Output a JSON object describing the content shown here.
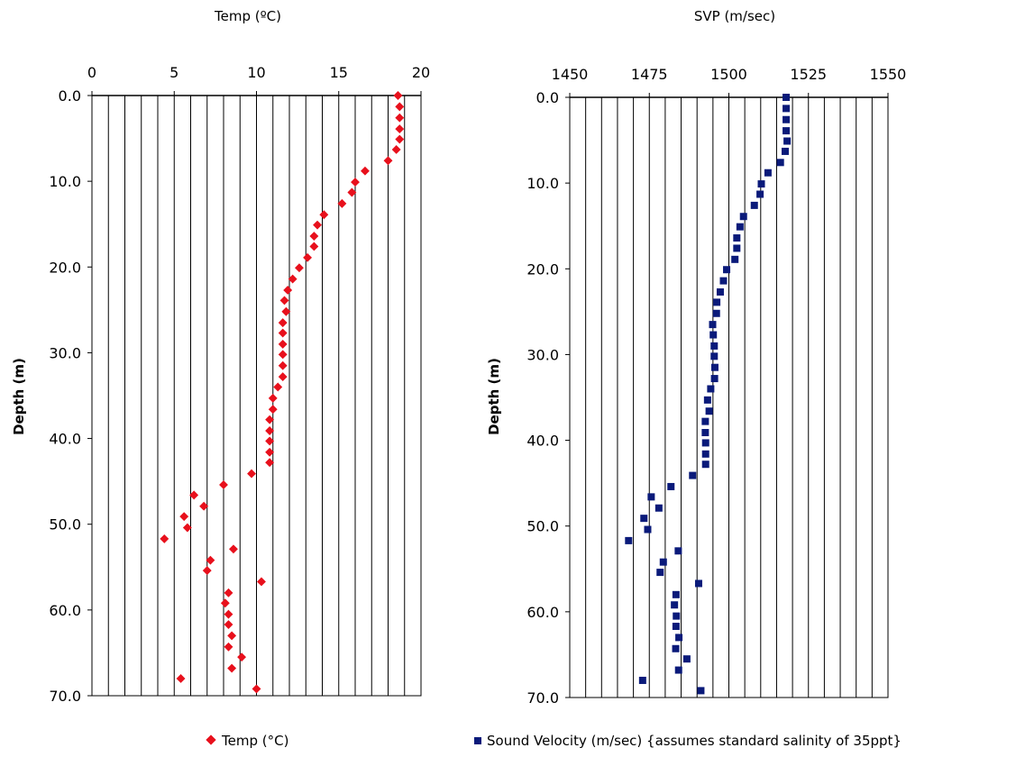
{
  "chart_data": [
    {
      "type": "scatter",
      "title": "Temp (ºC)",
      "ylabel": "Depth (m)",
      "xlim": [
        0,
        20
      ],
      "x_ticks": [
        "0",
        "5",
        "10",
        "15",
        "20"
      ],
      "ylim": [
        0,
        70
      ],
      "y_ticks": [
        "0.0",
        "10.0",
        "20.0",
        "30.0",
        "40.0",
        "50.0",
        "60.0",
        "70.0"
      ],
      "x_axis_position": "top",
      "y_inverted": true,
      "grid": "vertical",
      "legend": "bottom",
      "legend_label": "Temp (°C)",
      "marker": "diamond",
      "color": "#e8101c",
      "series": [
        {
          "name": "Temp (°C)",
          "points": [
            [
              18.6,
              0.0
            ],
            [
              18.7,
              1.3
            ],
            [
              18.7,
              2.6
            ],
            [
              18.7,
              3.9
            ],
            [
              18.7,
              5.1
            ],
            [
              18.5,
              6.3
            ],
            [
              18.0,
              7.6
            ],
            [
              16.6,
              8.8
            ],
            [
              16.0,
              10.1
            ],
            [
              15.8,
              11.3
            ],
            [
              15.2,
              12.6
            ],
            [
              14.1,
              13.9
            ],
            [
              13.7,
              15.1
            ],
            [
              13.5,
              16.4
            ],
            [
              13.5,
              17.6
            ],
            [
              13.1,
              18.9
            ],
            [
              12.6,
              20.1
            ],
            [
              12.2,
              21.4
            ],
            [
              11.9,
              22.7
            ],
            [
              11.7,
              23.9
            ],
            [
              11.8,
              25.2
            ],
            [
              11.6,
              26.5
            ],
            [
              11.6,
              27.7
            ],
            [
              11.6,
              29.0
            ],
            [
              11.6,
              30.2
            ],
            [
              11.6,
              31.5
            ],
            [
              11.6,
              32.8
            ],
            [
              11.3,
              34.0
            ],
            [
              11.0,
              35.3
            ],
            [
              11.0,
              36.6
            ],
            [
              10.8,
              37.8
            ],
            [
              10.8,
              39.1
            ],
            [
              10.8,
              40.3
            ],
            [
              10.8,
              41.6
            ],
            [
              10.8,
              42.8
            ],
            [
              9.7,
              44.1
            ],
            [
              8.0,
              45.4
            ],
            [
              6.2,
              46.6
            ],
            [
              6.8,
              47.9
            ],
            [
              5.6,
              49.1
            ],
            [
              5.8,
              50.4
            ],
            [
              4.4,
              51.7
            ],
            [
              8.6,
              52.9
            ],
            [
              7.2,
              54.2
            ],
            [
              7.0,
              55.4
            ],
            [
              10.3,
              56.7
            ],
            [
              8.3,
              58.0
            ],
            [
              8.1,
              59.2
            ],
            [
              8.3,
              60.5
            ],
            [
              8.3,
              61.7
            ],
            [
              8.5,
              63.0
            ],
            [
              8.3,
              64.3
            ],
            [
              9.1,
              65.5
            ],
            [
              8.5,
              66.8
            ],
            [
              5.4,
              68.0
            ],
            [
              10.0,
              69.2
            ]
          ]
        }
      ]
    },
    {
      "type": "scatter",
      "title": "SVP (m/sec)",
      "ylabel": "Depth (m)",
      "xlim": [
        1450,
        1550
      ],
      "x_ticks": [
        "1450",
        "1475",
        "1500",
        "1525",
        "1550"
      ],
      "ylim": [
        0,
        70
      ],
      "y_ticks": [
        "0.0",
        "10.0",
        "20.0",
        "30.0",
        "40.0",
        "50.0",
        "60.0",
        "70.0"
      ],
      "x_axis_position": "top",
      "y_inverted": true,
      "grid": "vertical",
      "legend": "bottom",
      "legend_label": "Sound Velocity (m/sec) {assumes standard salinity of 35ppt}",
      "marker": "square",
      "color": "#0a1a7a",
      "series": [
        {
          "name": "Sound Velocity (m/sec) {assumes standard salinity of 35ppt}",
          "points": [
            [
              1518.0,
              0.0
            ],
            [
              1518.0,
              1.3
            ],
            [
              1518.0,
              2.6
            ],
            [
              1518.0,
              3.9
            ],
            [
              1518.3,
              5.1
            ],
            [
              1517.7,
              6.3
            ],
            [
              1516.2,
              7.6
            ],
            [
              1512.3,
              8.8
            ],
            [
              1510.2,
              10.1
            ],
            [
              1509.8,
              11.3
            ],
            [
              1508.0,
              12.6
            ],
            [
              1504.6,
              13.9
            ],
            [
              1503.5,
              15.1
            ],
            [
              1502.5,
              16.4
            ],
            [
              1502.5,
              17.6
            ],
            [
              1501.9,
              18.9
            ],
            [
              1499.3,
              20.1
            ],
            [
              1498.3,
              21.4
            ],
            [
              1497.3,
              22.7
            ],
            [
              1496.2,
              23.9
            ],
            [
              1496.1,
              25.2
            ],
            [
              1494.9,
              26.5
            ],
            [
              1495.1,
              27.7
            ],
            [
              1495.4,
              29.0
            ],
            [
              1495.4,
              30.2
            ],
            [
              1495.6,
              31.5
            ],
            [
              1495.5,
              32.8
            ],
            [
              1494.3,
              34.0
            ],
            [
              1493.3,
              35.3
            ],
            [
              1493.8,
              36.6
            ],
            [
              1492.6,
              37.8
            ],
            [
              1492.6,
              39.1
            ],
            [
              1492.7,
              40.3
            ],
            [
              1492.7,
              41.6
            ],
            [
              1492.7,
              42.8
            ],
            [
              1488.6,
              44.1
            ],
            [
              1481.8,
              45.4
            ],
            [
              1475.6,
              46.6
            ],
            [
              1478.0,
              47.9
            ],
            [
              1473.3,
              49.1
            ],
            [
              1474.5,
              50.4
            ],
            [
              1468.5,
              51.7
            ],
            [
              1484.1,
              52.9
            ],
            [
              1479.4,
              54.2
            ],
            [
              1478.4,
              55.4
            ],
            [
              1490.5,
              56.7
            ],
            [
              1483.4,
              58.0
            ],
            [
              1482.9,
              59.2
            ],
            [
              1483.5,
              60.5
            ],
            [
              1483.4,
              61.7
            ],
            [
              1484.3,
              63.0
            ],
            [
              1483.3,
              64.3
            ],
            [
              1486.8,
              65.5
            ],
            [
              1484.2,
              66.8
            ],
            [
              1472.9,
              68.0
            ],
            [
              1491.2,
              69.2
            ]
          ]
        }
      ]
    }
  ]
}
